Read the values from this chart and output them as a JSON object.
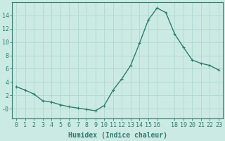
{
  "x": [
    0,
    1,
    2,
    3,
    4,
    5,
    6,
    7,
    8,
    9,
    10,
    11,
    12,
    13,
    14,
    15,
    16,
    17,
    18,
    19,
    20,
    21,
    22,
    23
  ],
  "y": [
    3.3,
    2.8,
    2.2,
    1.2,
    1.0,
    0.6,
    0.3,
    0.1,
    -0.1,
    -0.3,
    0.5,
    2.8,
    4.5,
    6.5,
    9.8,
    13.3,
    15.1,
    14.4,
    11.2,
    9.2,
    7.3,
    6.8,
    6.5,
    5.8
  ],
  "line_color": "#2e7d6e",
  "marker": "+",
  "marker_size": 3,
  "marker_linewidth": 0.8,
  "bg_color": "#cceae4",
  "grid_color": "#b0d8d0",
  "axis_color": "#2e7d6e",
  "xlabel": "Humidex (Indice chaleur)",
  "xlim": [
    -0.5,
    23.5
  ],
  "ylim": [
    -1.5,
    16.0
  ],
  "xtick_labels": [
    "0",
    "1",
    "2",
    "3",
    "4",
    "5",
    "6",
    "7",
    "8",
    "9",
    "10",
    "11",
    "12",
    "13",
    "14",
    "15",
    "16",
    "18",
    "19",
    "20",
    "21",
    "22",
    "23"
  ],
  "xtick_pos": [
    0,
    1,
    2,
    3,
    4,
    5,
    6,
    7,
    8,
    9,
    10,
    11,
    12,
    13,
    14,
    15,
    16,
    18,
    19,
    20,
    21,
    22,
    23
  ],
  "ytick_labels": [
    "-0",
    "2",
    "4",
    "6",
    "8",
    "10",
    "12",
    "14"
  ],
  "ytick_pos": [
    0,
    2,
    4,
    6,
    8,
    10,
    12,
    14
  ],
  "xlabel_fontsize": 7,
  "tick_fontsize": 6,
  "linewidth": 1.0
}
